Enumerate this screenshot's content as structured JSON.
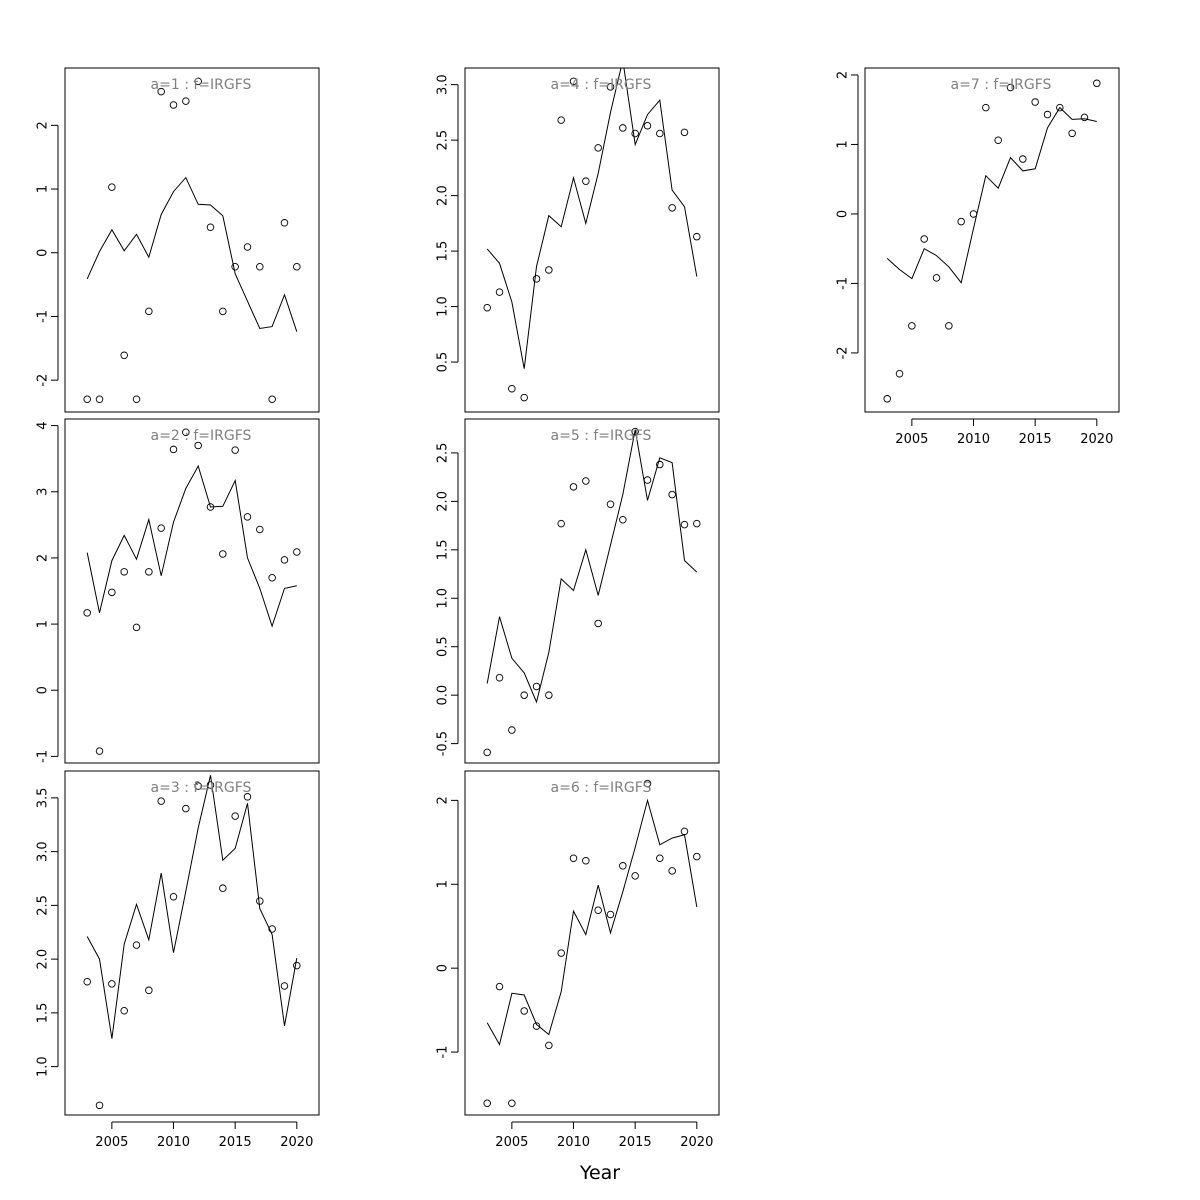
{
  "chart_data": {
    "type": "scatter",
    "xlabel": "Year",
    "x_ticks": [
      2005,
      2010,
      2015,
      2020
    ],
    "years": [
      2003,
      2004,
      2005,
      2006,
      2007,
      2008,
      2009,
      2010,
      2011,
      2012,
      2013,
      2014,
      2015,
      2016,
      2017,
      2018,
      2019,
      2020
    ],
    "x_range": [
      2001.2,
      2021.8
    ],
    "panels": [
      {
        "title": "a=1 : f=IRGFS",
        "ylim": [
          -2.5,
          2.9
        ],
        "yticks": [
          -2,
          -1,
          0,
          1,
          2
        ],
        "observed": [
          -2.3,
          -2.3,
          1.03,
          -1.61,
          -2.3,
          -0.92,
          2.53,
          2.32,
          2.38,
          2.69,
          0.4,
          -0.92,
          -0.22,
          0.09,
          -0.22,
          -2.3,
          0.47,
          -0.22
        ],
        "fitted": [
          -0.41,
          0.02,
          0.36,
          0.03,
          0.29,
          -0.07,
          0.6,
          0.96,
          1.18,
          0.76,
          0.75,
          0.58,
          -0.33,
          -0.76,
          -1.19,
          -1.16,
          -0.66,
          -1.24
        ]
      },
      {
        "title": "a=2 : f=IRGFS",
        "ylim": [
          -1.1,
          4.1
        ],
        "yticks": [
          -1,
          0,
          1,
          2,
          3,
          4
        ],
        "observed": [
          1.17,
          -0.92,
          1.48,
          1.79,
          0.95,
          1.79,
          2.45,
          3.64,
          3.9,
          3.7,
          2.77,
          2.06,
          3.63,
          2.62,
          2.43,
          1.7,
          1.97,
          2.09
        ],
        "fitted": [
          2.08,
          1.17,
          1.96,
          2.34,
          1.98,
          2.58,
          1.73,
          2.54,
          3.05,
          3.39,
          2.77,
          2.78,
          3.17,
          2.0,
          1.54,
          0.97,
          1.54,
          1.58
        ]
      },
      {
        "title": "a=3 : f=IRGFS",
        "ylim": [
          0.55,
          3.75
        ],
        "yticks": [
          1.0,
          1.5,
          2.0,
          2.5,
          3.0,
          3.5
        ],
        "observed": [
          1.79,
          0.64,
          1.77,
          1.52,
          2.13,
          1.71,
          3.47,
          2.58,
          3.4,
          3.61,
          3.62,
          2.66,
          3.33,
          3.51,
          2.54,
          2.28,
          1.75,
          1.94
        ],
        "fitted": [
          2.21,
          2.0,
          1.26,
          2.14,
          2.51,
          2.18,
          2.8,
          2.06,
          2.63,
          3.22,
          3.71,
          2.92,
          3.03,
          3.45,
          2.47,
          2.23,
          1.38,
          2.01
        ]
      },
      {
        "title": "a=4 : f=IRGFS",
        "ylim": [
          0.05,
          3.15
        ],
        "yticks": [
          0.5,
          1.0,
          1.5,
          2.0,
          2.5,
          3.0
        ],
        "observed": [
          0.99,
          1.13,
          0.26,
          0.18,
          1.25,
          1.33,
          2.68,
          3.03,
          2.13,
          2.43,
          2.98,
          2.61,
          2.56,
          2.63,
          2.56,
          1.89,
          2.57,
          1.63
        ],
        "fitted": [
          1.52,
          1.39,
          1.04,
          0.44,
          1.36,
          1.82,
          1.72,
          2.16,
          1.75,
          2.2,
          2.75,
          3.22,
          2.46,
          2.73,
          2.86,
          2.05,
          1.9,
          1.27
        ]
      },
      {
        "title": "a=5 : f=IRGFS",
        "ylim": [
          -0.7,
          2.85
        ],
        "yticks": [
          -0.5,
          0.0,
          0.5,
          1.0,
          1.5,
          2.0,
          2.5
        ],
        "observed": [
          -0.59,
          0.18,
          -0.36,
          0.0,
          0.09,
          0.0,
          1.77,
          2.15,
          2.21,
          0.74,
          1.97,
          1.81,
          2.72,
          2.22,
          2.38,
          2.07,
          1.76,
          1.77
        ],
        "fitted": [
          0.12,
          0.81,
          0.38,
          0.23,
          -0.07,
          0.44,
          1.2,
          1.08,
          1.5,
          1.03,
          1.55,
          2.07,
          2.74,
          2.01,
          2.45,
          2.4,
          1.39,
          1.27
        ]
      },
      {
        "title": "a=6 : f=IRGFS",
        "ylim": [
          -1.75,
          2.35
        ],
        "yticks": [
          -1,
          0,
          1,
          2
        ],
        "observed": [
          -1.61,
          -0.22,
          -1.61,
          -0.51,
          -0.69,
          -0.92,
          0.18,
          1.31,
          1.28,
          0.69,
          0.64,
          1.22,
          1.1,
          2.2,
          1.31,
          1.16,
          1.63,
          1.33
        ],
        "fitted": [
          -0.65,
          -0.91,
          -0.3,
          -0.32,
          -0.67,
          -0.79,
          -0.28,
          0.68,
          0.4,
          0.99,
          0.42,
          0.91,
          1.44,
          2.0,
          1.47,
          1.55,
          1.59,
          0.73
        ]
      },
      {
        "title": "a=7 : f=IRGFS",
        "ylim": [
          -2.85,
          2.1
        ],
        "yticks": [
          -2,
          -1,
          0,
          1,
          2
        ],
        "observed": [
          -2.66,
          -2.3,
          -1.61,
          -0.36,
          -0.92,
          -1.61,
          -0.11,
          0.0,
          1.53,
          1.06,
          1.82,
          0.79,
          1.61,
          1.43,
          1.53,
          1.16,
          1.39,
          1.88
        ],
        "fitted": [
          -0.64,
          -0.8,
          -0.93,
          -0.5,
          -0.6,
          -0.76,
          -0.99,
          -0.21,
          0.55,
          0.37,
          0.81,
          0.62,
          0.65,
          1.24,
          1.53,
          1.36,
          1.37,
          1.33
        ]
      }
    ]
  }
}
